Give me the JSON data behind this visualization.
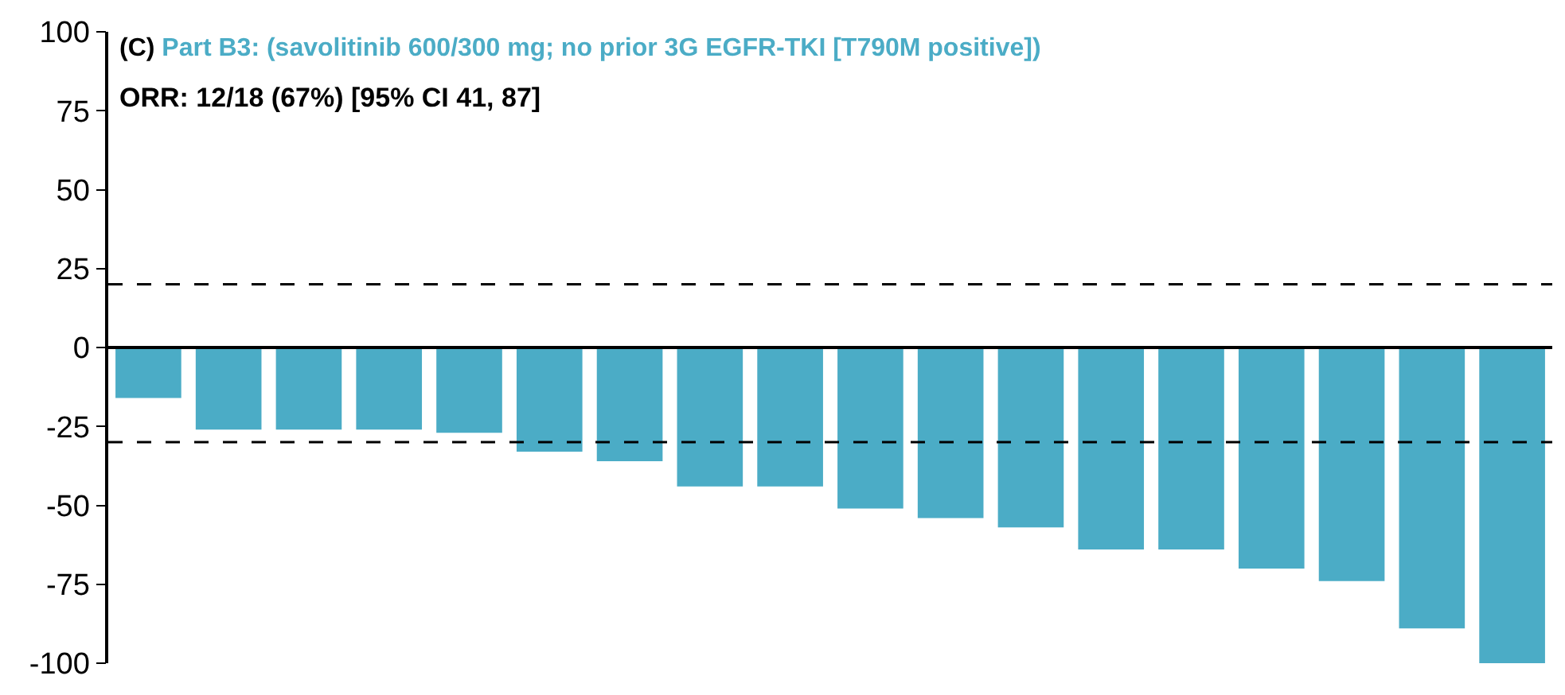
{
  "chart_data": {
    "type": "bar",
    "title": "(C) Part B3: (savolitinib 600/300 mg; no prior 3G EGFR-TKI [T790M positive])",
    "subtitle": "ORR: 12/18 (67%) [95% CI 41, 87]",
    "categories": [
      null,
      null,
      null,
      null,
      null,
      null,
      null,
      null,
      null,
      null,
      null,
      null,
      null,
      null,
      null,
      null,
      null,
      null
    ],
    "values": [
      -16,
      -26,
      -26,
      -26,
      -27,
      -33,
      -36,
      -44,
      -44,
      -51,
      -54,
      -57,
      -64,
      -64,
      -70,
      -74,
      -89,
      -100
    ],
    "color": "#4bacc6",
    "ylim": [
      -100,
      100
    ],
    "yticks": [
      -100,
      -75,
      -50,
      -25,
      0,
      25,
      50,
      75,
      100
    ],
    "ref_lines": [
      {
        "axis": "y",
        "value": 0,
        "line_style": "solid",
        "color": "#000000"
      },
      {
        "axis": "y",
        "value": 20,
        "line_style": "dashed",
        "color": "#000000"
      },
      {
        "axis": "y",
        "value": -30,
        "line_style": "dashed",
        "color": "#000000"
      }
    ]
  }
}
